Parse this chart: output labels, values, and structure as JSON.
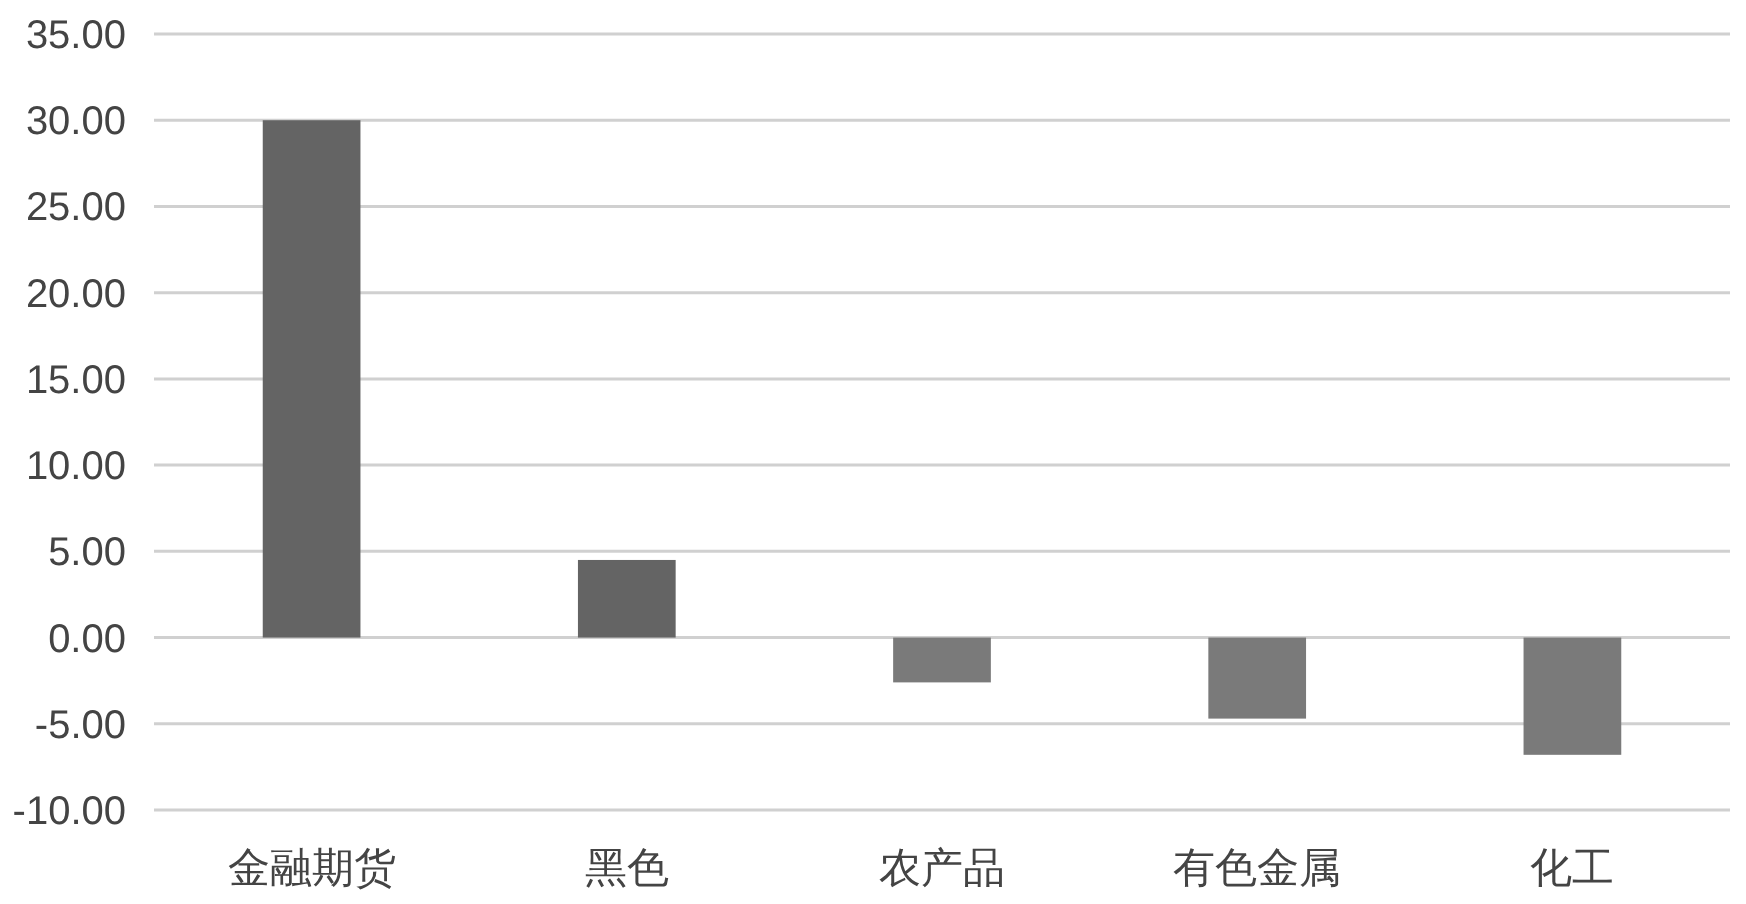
{
  "chart_data": {
    "type": "bar",
    "categories": [
      "金融期货",
      "黑色",
      "农产品",
      "有色金属",
      "化工"
    ],
    "values": [
      30.0,
      4.5,
      -2.6,
      -4.7,
      -6.8
    ],
    "colors": [
      "#646464",
      "#646464",
      "#7a7a7a",
      "#7a7a7a",
      "#7a7a7a"
    ],
    "ylim": [
      -10,
      35
    ],
    "yticks": [
      {
        "value": -10,
        "label": "-10.00"
      },
      {
        "value": -5,
        "label": "-5.00"
      },
      {
        "value": 0,
        "label": "0.00"
      },
      {
        "value": 5,
        "label": "5.00"
      },
      {
        "value": 10,
        "label": "10.00"
      },
      {
        "value": 15,
        "label": "15.00"
      },
      {
        "value": 20,
        "label": "20.00"
      },
      {
        "value": 25,
        "label": "25.00"
      },
      {
        "value": 30,
        "label": "30.00"
      },
      {
        "value": 35,
        "label": "35.00"
      }
    ],
    "grid": "y"
  }
}
